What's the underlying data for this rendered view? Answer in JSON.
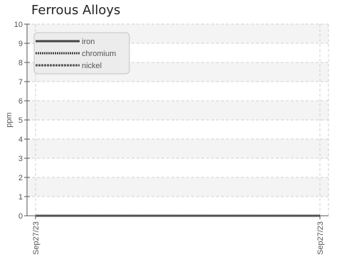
{
  "chart_data": {
    "type": "line",
    "title": "Ferrous Alloys",
    "xlabel": "",
    "ylabel": "ppm",
    "categories": [
      "Sep27/23",
      "Sep27/23"
    ],
    "ylim": [
      0,
      10
    ],
    "yticks": [
      0,
      1,
      2,
      3,
      4,
      5,
      6,
      7,
      8,
      9,
      10
    ],
    "grid": true,
    "legend_position": "top-left",
    "series": [
      {
        "name": "iron",
        "values": [
          0,
          0
        ],
        "style": "solid",
        "color": "#444444"
      },
      {
        "name": "chromium",
        "values": [
          0,
          0
        ],
        "style": "dotted",
        "color": "#444444"
      },
      {
        "name": "nickel",
        "values": [
          0,
          0
        ],
        "style": "dashed",
        "color": "#555555"
      }
    ]
  }
}
